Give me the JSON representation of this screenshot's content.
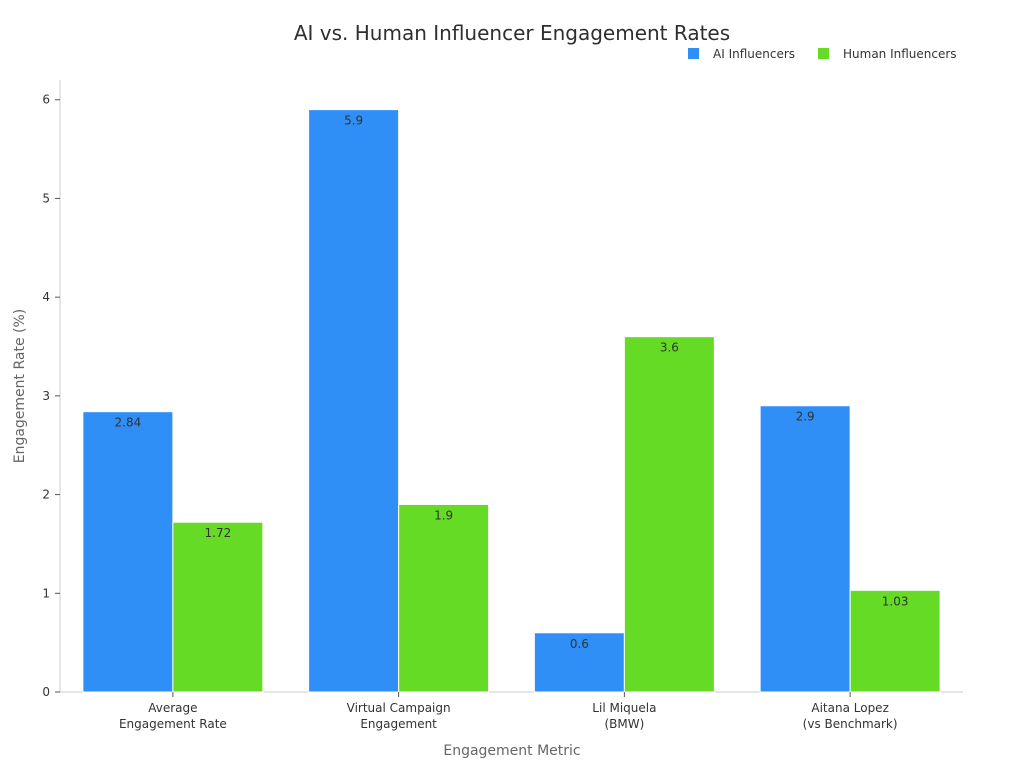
{
  "chart_data": {
    "type": "bar",
    "title": "AI vs. Human Influencer Engagement Rates",
    "xlabel": "Engagement Metric",
    "ylabel": "Engagement Rate (%)",
    "categories": [
      [
        "Average",
        "Engagement Rate"
      ],
      [
        "Virtual Campaign",
        "Engagement"
      ],
      [
        "Lil Miquela",
        "(BMW)"
      ],
      [
        "Aitana Lopez",
        "(vs Benchmark)"
      ]
    ],
    "series": [
      {
        "name": "AI Influencers",
        "values": [
          2.84,
          5.9,
          0.6,
          2.9
        ],
        "color": "#2f8ff7",
        "labels": [
          "2.84",
          "5.9",
          "0.6",
          "2.9"
        ]
      },
      {
        "name": "Human Influencers",
        "values": [
          1.72,
          1.9,
          3.6,
          1.03
        ],
        "color": "#66db26",
        "labels": [
          "1.72",
          "1.9",
          "3.6",
          "1.03"
        ]
      }
    ],
    "ylim": [
      0,
      6.2
    ],
    "yticks": [
      0,
      1,
      2,
      3,
      4,
      5,
      6
    ],
    "ytick_labels": [
      "0",
      "1",
      "2",
      "3",
      "4",
      "5",
      "6"
    ],
    "grid": false,
    "legend_position": "top-right"
  }
}
